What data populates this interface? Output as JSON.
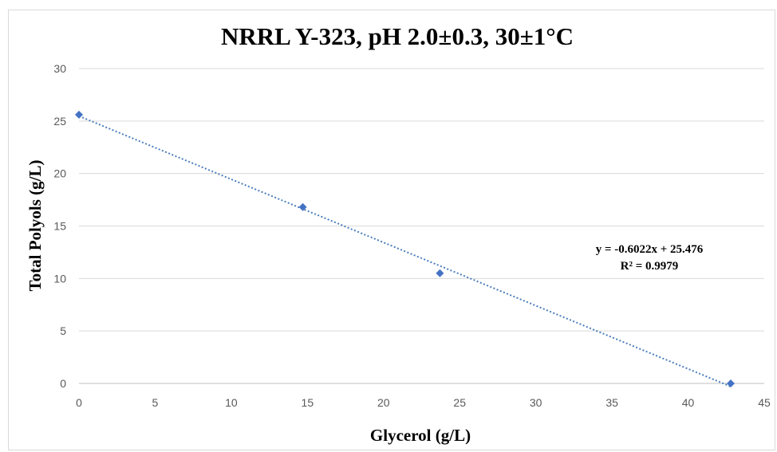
{
  "chart_data": {
    "type": "scatter",
    "title": "NRRL Y-323, pH 2.0±0.3, 30±1°C",
    "xlabel": "Glycerol (g/L)",
    "ylabel": "Total Polyols (g/L)",
    "xlim": [
      0,
      45
    ],
    "ylim": [
      0,
      30
    ],
    "xticks": [
      0,
      5,
      10,
      15,
      20,
      25,
      30,
      35,
      40,
      45
    ],
    "yticks": [
      0,
      5,
      10,
      15,
      20,
      25,
      30
    ],
    "grid": "horizontal",
    "legend": "none",
    "marker_color": "#4472c4",
    "trendline_color": "#4a7ebb",
    "series": [
      {
        "points": [
          {
            "x": 0.0,
            "y": 25.6
          },
          {
            "x": 14.7,
            "y": 16.8
          },
          {
            "x": 23.7,
            "y": 10.5
          },
          {
            "x": 42.8,
            "y": 0.0
          }
        ]
      }
    ],
    "trendline": {
      "type": "linear",
      "slope": -0.6022,
      "intercept": 25.476,
      "equation": "y = -0.6022x + 25.476",
      "r_squared": "R² = 0.9979"
    }
  }
}
